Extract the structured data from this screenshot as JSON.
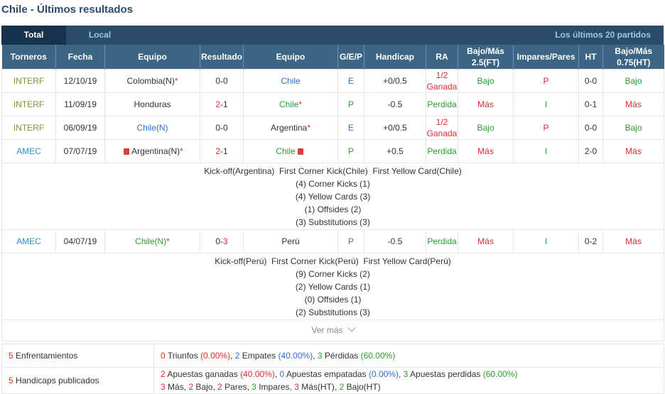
{
  "title": "Chile - Últimos resultados",
  "tabs": {
    "total": "Total",
    "local": "Local",
    "last20": "Los últimos 20 partidos"
  },
  "headers": [
    "Torneros",
    "Fecha",
    "Equipo",
    "Resultado",
    "Equipo",
    "G/E/P",
    "Handicap",
    "RA",
    "Bajo/Más 2.5(FT)",
    "Impares/Pares",
    "HT",
    "Bajo/Más 0.75(HT)"
  ],
  "matches": [
    {
      "league": "INTERF",
      "date": "12/10/19",
      "home": "Colombia(N)",
      "home_star": "*",
      "score_h": "0",
      "score_sep": "-",
      "score_a": "0",
      "away": "Chile",
      "away_star": "",
      "gep": "E",
      "handicap": "+0/0.5",
      "ra1": "1/2",
      "ra2": "Ganada",
      "ou": "Bajo",
      "op": "P",
      "ht": "0-0",
      "ou_ht": "Bajo"
    },
    {
      "league": "INTERF",
      "date": "11/09/19",
      "home": "Honduras",
      "home_star": "",
      "score_h": "2",
      "score_sep": "-",
      "score_a": "1",
      "away": "Chile",
      "away_star": "*",
      "gep": "P",
      "handicap": "-0.5",
      "ra1": "Perdida",
      "ra2": "",
      "ou": "Más",
      "op": "I",
      "ht": "0-1",
      "ou_ht": "Más"
    },
    {
      "league": "INTERF",
      "date": "06/09/19",
      "home": "Chile(N)",
      "home_star": "",
      "score_h": "0",
      "score_sep": "-",
      "score_a": "0",
      "away": "Argentina",
      "away_star": "*",
      "gep": "E",
      "handicap": "+0/0.5",
      "ra1": "1/2",
      "ra2": "Ganada",
      "ou": "Bajo",
      "op": "P",
      "ht": "0-0",
      "ou_ht": "Bajo"
    },
    {
      "league": "AMEC",
      "date": "07/07/19",
      "home": "Argentina(N)",
      "home_star": "*",
      "score_h": "2",
      "score_sep": "-",
      "score_a": "1",
      "away": "Chile",
      "away_star": "",
      "gep": "P",
      "handicap": "+0.5",
      "ra1": "Perdida",
      "ra2": "",
      "ou": "Más",
      "op": "I",
      "ht": "2-0",
      "ou_ht": "Más",
      "details": [
        "Kick-off(Argentina)  First Corner Kick(Chile)  First Yellow Card(Chile)",
        "(4) Corner Kicks (1)",
        "(4) Yellow Cards (3)",
        "(1) Offsides (2)",
        "(3) Substitutions (3)"
      ]
    },
    {
      "league": "AMEC",
      "date": "04/07/19",
      "home": "Chile(N)",
      "home_star": "*",
      "score_h": "0",
      "score_sep": "-",
      "score_a": "3",
      "away": "Perú",
      "away_star": "",
      "gep": "P",
      "handicap": "-0.5",
      "ra1": "Perdida",
      "ra2": "",
      "ou": "Más",
      "op": "I",
      "ht": "0-2",
      "ou_ht": "Más",
      "details": [
        "Kick-off(Perú)  First Corner Kick(Perú)  First Yellow Card(Perú)",
        "(9) Corner Kicks (2)",
        "(2) Yellow Cards (1)",
        "(0) Offsides (1)",
        "(2) Substitutions (3)"
      ]
    }
  ],
  "ver_mas": "Ver más",
  "summary": {
    "enfrentamientos": {
      "label": "Enfrentamientos",
      "count": "5",
      "triunfos": "0",
      "triunfos_label": "Triunfos",
      "triunfos_pct": "(0.00%)",
      "empates": "2",
      "empates_label": "Empates",
      "empates_pct": "(40.00%)",
      "perdidas": "3",
      "perdidas_label": "Pérdidas",
      "perdidas_pct": "(60.00%)"
    },
    "handicaps": {
      "label": "Handicaps publicados",
      "count": "5",
      "ganadas": "2",
      "ganadas_label": "Apuestas ganadas",
      "ganadas_pct": "(40.00%)",
      "empatadas": "0",
      "empatadas_label": "Apuestas empatadas",
      "empatadas_pct": "(0.00%)",
      "perdidas": "3",
      "perdidas_label": "Apuestas perdidas",
      "perdidas_pct": "(60.00%)",
      "line2": [
        {
          "n": "3",
          "t": "Más"
        },
        {
          "n": "2",
          "t": "Bajo"
        },
        {
          "n": "2",
          "t": "Pares"
        },
        {
          "n": "3",
          "t": "Impares"
        },
        {
          "n": "3",
          "t": "Más(HT)"
        },
        {
          "n": "2",
          "t": "Bajo(HT)"
        }
      ]
    }
  },
  "colors": {
    "header_bg": "#3b6583",
    "tabbar_bg": "#2a4b6a",
    "red": "#e22c2c",
    "green": "#2e9b2e",
    "blue": "#2f6fcf"
  }
}
